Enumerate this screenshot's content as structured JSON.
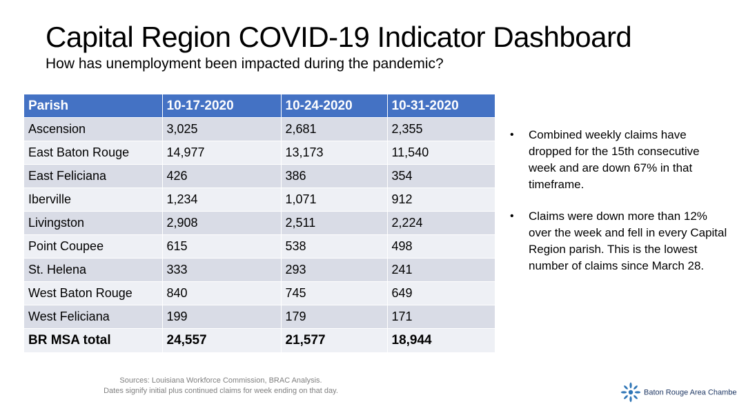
{
  "title": "Capital Region COVID-19 Indicator Dashboard",
  "subtitle": "How has unemployment been impacted during the pandemic?",
  "table": {
    "headers": [
      "Parish",
      "10-17-2020",
      "10-24-2020",
      "10-31-2020"
    ],
    "rows": [
      [
        "Ascension",
        "3,025",
        "2,681",
        "2,355"
      ],
      [
        "East Baton Rouge",
        "14,977",
        "13,173",
        "11,540"
      ],
      [
        "East Feliciana",
        "426",
        "386",
        "354"
      ],
      [
        "Iberville",
        "1,234",
        "1,071",
        "912"
      ],
      [
        "Livingston",
        "2,908",
        "2,511",
        "2,224"
      ],
      [
        "Point Coupee",
        "615",
        "538",
        "498"
      ],
      [
        "St. Helena",
        "333",
        "293",
        "241"
      ],
      [
        "West Baton Rouge",
        "840",
        "745",
        "649"
      ],
      [
        "West Feliciana",
        "199",
        "179",
        "171"
      ]
    ],
    "total": [
      "BR MSA total",
      "24,557",
      "21,577",
      "18,944"
    ]
  },
  "bullets": [
    "Combined weekly claims have dropped for the 15th consecutive week and are down 67% in that timeframe.",
    "Claims were down more than 12% over the week and fell in every Capital Region parish. This is the lowest number of claims since March 28."
  ],
  "bullet_marker": "•",
  "sources": {
    "line1": "Sources: Louisiana Workforce Commission, BRAC Analysis.",
    "line2": "Dates signify initial plus continued claims for week ending on that day."
  },
  "logo": {
    "icon": "starburst-logo-icon",
    "text": "Baton Rouge Area Chamber",
    "mark": "®"
  },
  "colors": {
    "header_blue": "#4472c4",
    "row_dark": "#d9dce6",
    "row_light": "#eef0f5",
    "logo_blue": "#2e75b6"
  }
}
